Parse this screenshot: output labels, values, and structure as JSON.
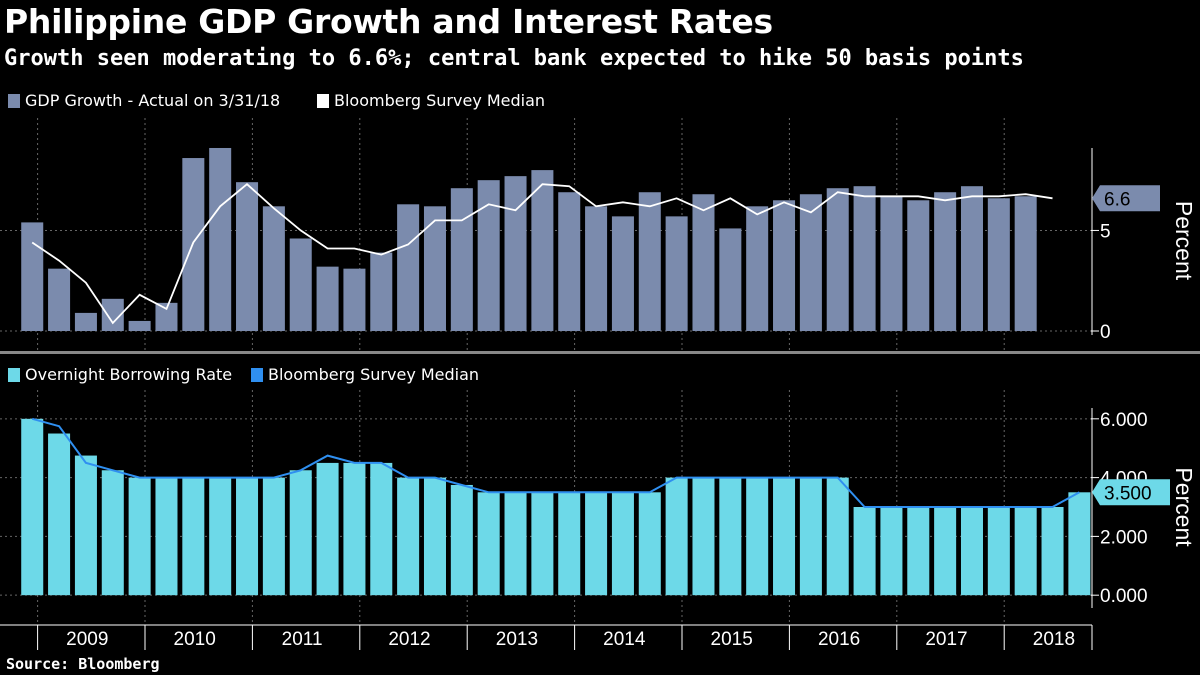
{
  "title": "Philippine GDP Growth and Interest Rates",
  "subtitle": "Growth seen moderating to 6.6%; central bank expected to hike 50 basis points",
  "source": "Source: Bloomberg",
  "colors": {
    "background": "#000000",
    "gdp_bar": "#7b8bad",
    "gdp_median_line": "#ffffff",
    "rate_bar": "#6dd9e8",
    "rate_median_line": "#2f8ff0",
    "callout_top": "#7b8bad",
    "callout_bottom": "#6dd9e8"
  },
  "chart_data": [
    {
      "type": "bar",
      "panel": "top",
      "ylabel": "Percent",
      "ylim": [
        0,
        9
      ],
      "yticks": [
        "0",
        "5"
      ],
      "ytick_values": [
        0,
        5
      ],
      "grid": true,
      "legend": "top-left",
      "callout": "6.6",
      "series": [
        {
          "name": "GDP Growth - Actual  on 3/31/18",
          "kind": "bar",
          "values": [
            5.4,
            3.1,
            0.9,
            1.6,
            0.5,
            1.4,
            8.6,
            9.1,
            7.4,
            6.2,
            4.6,
            3.2,
            3.1,
            3.9,
            6.3,
            6.2,
            7.1,
            7.5,
            7.7,
            8.0,
            6.9,
            6.2,
            5.7,
            6.9,
            5.7,
            6.8,
            5.1,
            6.2,
            6.5,
            6.8,
            7.1,
            7.2,
            6.7,
            6.5,
            6.9,
            7.2,
            6.6,
            6.7
          ]
        },
        {
          "name": "Bloomberg Survey Median",
          "kind": "line",
          "values": [
            4.4,
            3.5,
            2.4,
            0.4,
            1.8,
            1.1,
            4.4,
            6.2,
            7.3,
            6.1,
            5.0,
            4.1,
            4.1,
            3.8,
            4.3,
            5.5,
            5.5,
            6.3,
            6.0,
            7.3,
            7.2,
            6.2,
            6.4,
            6.2,
            6.6,
            6.0,
            6.6,
            5.8,
            6.4,
            5.9,
            6.9,
            6.7,
            6.7,
            6.7,
            6.5,
            6.7,
            6.7,
            6.8,
            6.6
          ]
        }
      ]
    },
    {
      "type": "bar",
      "panel": "bottom",
      "ylabel": "Percent",
      "ylim": [
        -0.3,
        6.3
      ],
      "yticks": [
        "0.000",
        "2.000",
        "4.000",
        "6.000"
      ],
      "ytick_values": [
        0,
        2,
        4,
        6
      ],
      "grid": true,
      "legend": "top-left",
      "callout": "3.500",
      "series": [
        {
          "name": "Overnight Borrowing Rate",
          "kind": "bar",
          "values": [
            6.0,
            5.5,
            4.75,
            4.25,
            4.0,
            4.0,
            4.0,
            4.0,
            4.0,
            4.0,
            4.25,
            4.5,
            4.5,
            4.5,
            4.0,
            4.0,
            3.75,
            3.5,
            3.5,
            3.5,
            3.5,
            3.5,
            3.5,
            3.5,
            4.0,
            4.0,
            4.0,
            4.0,
            4.0,
            4.0,
            4.0,
            3.0,
            3.0,
            3.0,
            3.0,
            3.0,
            3.0,
            3.0,
            3.0,
            3.5
          ]
        },
        {
          "name": "Bloomberg Survey Median",
          "kind": "line",
          "values": [
            6.0,
            5.75,
            4.5,
            4.25,
            4.0,
            4.0,
            4.0,
            4.0,
            4.0,
            4.0,
            4.25,
            4.75,
            4.5,
            4.5,
            4.0,
            4.0,
            3.75,
            3.5,
            3.5,
            3.5,
            3.5,
            3.5,
            3.5,
            3.5,
            4.0,
            4.0,
            4.0,
            4.0,
            4.0,
            4.0,
            4.0,
            3.0,
            3.0,
            3.0,
            3.0,
            3.0,
            3.0,
            3.0,
            3.0,
            3.5
          ]
        }
      ]
    }
  ],
  "xaxis": {
    "years": [
      "2009",
      "2010",
      "2011",
      "2012",
      "2013",
      "2014",
      "2015",
      "2016",
      "2017",
      "2018"
    ]
  }
}
